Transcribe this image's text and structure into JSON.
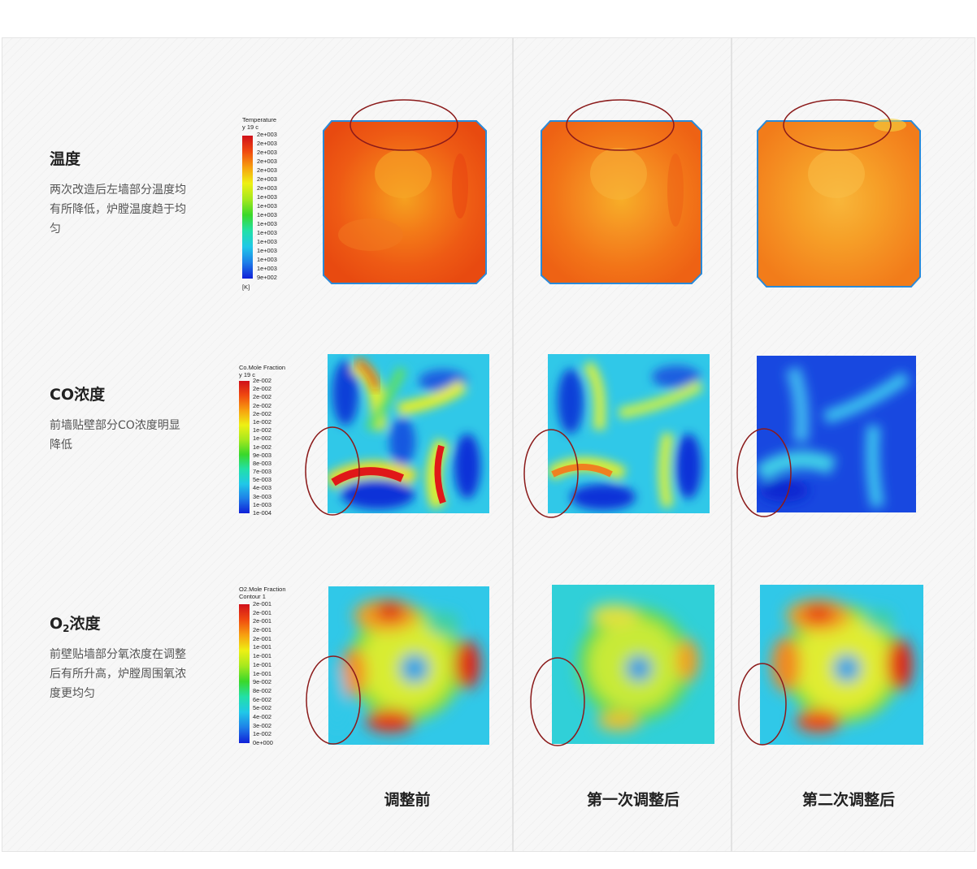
{
  "rows": [
    {
      "title": "温度",
      "desc": "两次改造后左墙部分温度均有所降低，炉膛温度趋于均匀"
    },
    {
      "title": "CO浓度",
      "desc": "前墙贴壁部分CO浓度明显降低"
    },
    {
      "title_main": "O",
      "title_sub": "2",
      "title_tail": "浓度",
      "desc": "前壁贴墙部分氧浓度在调整后有所升高，炉膛周围氧浓度更均匀"
    }
  ],
  "legends": {
    "temperature": {
      "title_line1": "Temperature",
      "title_line2": "y 19 c",
      "ticks": [
        "2e+003",
        "2e+003",
        "2e+003",
        "2e+003",
        "2e+003",
        "2e+003",
        "2e+003",
        "1e+003",
        "1e+003",
        "1e+003",
        "1e+003",
        "1e+003",
        "1e+003",
        "1e+003",
        "1e+003",
        "1e+003",
        "9e+002"
      ],
      "unit": "[K]"
    },
    "co": {
      "title_line1": "Co.Mole Fraction",
      "title_line2": "y 19 c",
      "ticks": [
        "2e-002",
        "2e-002",
        "2e-002",
        "2e-002",
        "2e-002",
        "1e-002",
        "1e-002",
        "1e-002",
        "1e-002",
        "9e-003",
        "8e-003",
        "7e-003",
        "5e-003",
        "4e-003",
        "3e-003",
        "1e-003",
        "1e-004"
      ]
    },
    "o2": {
      "title_line1": "O2.Mole Fraction",
      "title_line2": "Contour 1",
      "ticks": [
        "2e-001",
        "2e-001",
        "2e-001",
        "2e-001",
        "2e-001",
        "1e-001",
        "1e-001",
        "1e-001",
        "1e-001",
        "9e-002",
        "8e-002",
        "6e-002",
        "5e-002",
        "4e-002",
        "3e-002",
        "1e-002",
        "0e+000"
      ]
    }
  },
  "columns": [
    "调整前",
    "第一次调整后",
    "第二次调整后"
  ],
  "colors": {
    "highlight_ellipse": "#8b1a1a",
    "divider": "#e2e2e2",
    "legend_scale": [
      "#d0101a",
      "#f04a10",
      "#f7a010",
      "#eef014",
      "#a6e81e",
      "#3ad82a",
      "#22e0a8",
      "#20c8e8",
      "#1e7ee8",
      "#1020d8"
    ]
  }
}
